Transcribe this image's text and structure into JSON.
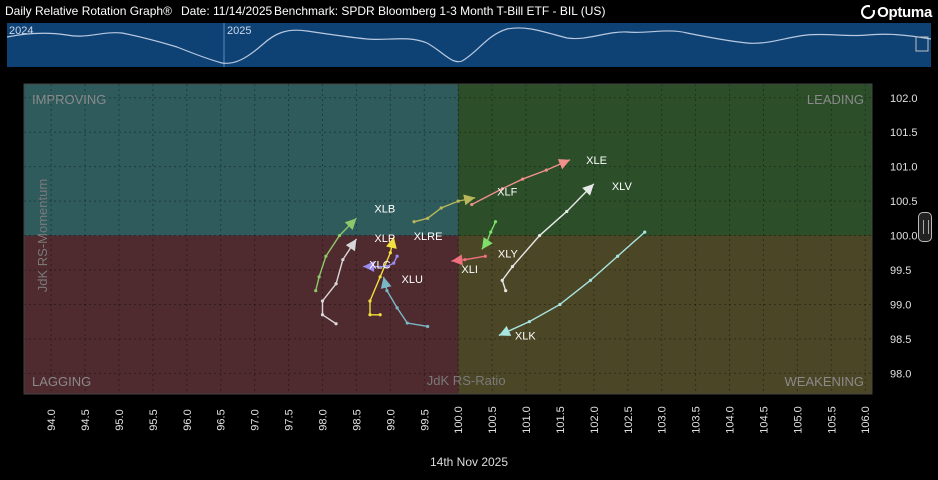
{
  "header": {
    "app_title": "Daily Relative Rotation Graph®",
    "date": "Date: 11/14/2025",
    "benchmark": "Benchmark: SPDR Bloomberg 1-3 Month T-Bill ETF - BIL (US)",
    "logo_text": "Optuma"
  },
  "timeline": {
    "year_labels": [
      "2024",
      "2025"
    ]
  },
  "footer": {
    "date_label": "14th Nov 2025"
  },
  "chart_data": {
    "type": "scatter",
    "title": "",
    "xlabel": "JdK RS-Ratio",
    "ylabel": "JdK RS-Momentum",
    "xlim": [
      93.6,
      106.1
    ],
    "ylim": [
      97.7,
      102.2
    ],
    "x_ticks": [
      "94.0",
      "94.5",
      "95.0",
      "95.5",
      "96.0",
      "96.5",
      "97.0",
      "97.5",
      "98.0",
      "98.5",
      "99.0",
      "99.5",
      "100.0",
      "100.5",
      "101.0",
      "101.5",
      "102.0",
      "102.5",
      "103.0",
      "103.5",
      "104.0",
      "104.5",
      "105.0",
      "105.5",
      "106.0"
    ],
    "y_ticks": [
      "98.0",
      "98.5",
      "99.0",
      "99.5",
      "100.0",
      "100.5",
      "101.0",
      "101.5",
      "102.0"
    ],
    "center": [
      100.0,
      100.0
    ],
    "grid": true,
    "quadrants": [
      {
        "name": "IMPROVING",
        "color": "#2f5b5d"
      },
      {
        "name": "LEADING",
        "color": "#2c4f2a"
      },
      {
        "name": "LAGGING",
        "color": "#4f2a2e"
      },
      {
        "name": "WEAKENING",
        "color": "#4b4626"
      }
    ],
    "series": [
      {
        "name": "XLE",
        "color": "#f08f8c",
        "points": [
          [
            100.2,
            100.45
          ],
          [
            100.65,
            100.68
          ],
          [
            100.95,
            100.82
          ],
          [
            101.3,
            100.95
          ],
          [
            101.65,
            101.1
          ]
        ]
      },
      {
        "name": "XLF",
        "color": "#b8b85a",
        "points": [
          [
            99.35,
            100.2
          ],
          [
            99.55,
            100.25
          ],
          [
            99.75,
            100.4
          ],
          [
            100.0,
            100.5
          ],
          [
            100.25,
            100.55
          ]
        ]
      },
      {
        "name": "XLV",
        "color": "#e8e8e8",
        "points": [
          [
            100.7,
            99.2
          ],
          [
            100.65,
            99.35
          ],
          [
            100.8,
            99.55
          ],
          [
            101.2,
            100.0
          ],
          [
            101.6,
            100.35
          ],
          [
            102.0,
            100.75
          ]
        ]
      },
      {
        "name": "XLK",
        "color": "#a8e4e0",
        "points": [
          [
            102.75,
            100.05
          ],
          [
            102.35,
            99.7
          ],
          [
            101.95,
            99.35
          ],
          [
            101.5,
            99.0
          ],
          [
            101.05,
            98.75
          ],
          [
            100.6,
            98.55
          ]
        ]
      },
      {
        "name": "XLY",
        "color": "#7ee06a",
        "points": [
          [
            100.55,
            100.2
          ],
          [
            100.48,
            100.05
          ],
          [
            100.42,
            99.9
          ],
          [
            100.35,
            99.8
          ]
        ]
      },
      {
        "name": "XLI",
        "color": "#f07080",
        "points": [
          [
            100.4,
            99.7
          ],
          [
            100.1,
            99.65
          ],
          [
            99.9,
            99.63
          ]
        ]
      },
      {
        "name": "XLB",
        "color": "#8fc86a",
        "points": [
          [
            97.9,
            99.2
          ],
          [
            97.95,
            99.4
          ],
          [
            98.05,
            99.7
          ],
          [
            98.25,
            100.0
          ],
          [
            98.5,
            100.25
          ]
        ]
      },
      {
        "name": "XLP",
        "color": "#d8d8d8",
        "points": [
          [
            98.2,
            98.72
          ],
          [
            98.0,
            98.85
          ],
          [
            98.0,
            99.05
          ],
          [
            98.2,
            99.3
          ],
          [
            98.3,
            99.65
          ],
          [
            98.5,
            99.95
          ]
        ]
      },
      {
        "name": "XLRE",
        "color": "#f0e040",
        "points": [
          [
            98.85,
            98.85
          ],
          [
            98.7,
            98.85
          ],
          [
            98.7,
            99.05
          ],
          [
            98.85,
            99.4
          ],
          [
            99.0,
            99.75
          ],
          [
            99.05,
            99.98
          ]
        ]
      },
      {
        "name": "XLC",
        "color": "#9a8cf0",
        "points": [
          [
            99.1,
            99.7
          ],
          [
            99.05,
            99.6
          ],
          [
            98.95,
            99.55
          ],
          [
            98.6,
            99.55
          ]
        ]
      },
      {
        "name": "XLU",
        "color": "#7ab8c8",
        "points": [
          [
            99.55,
            98.68
          ],
          [
            99.25,
            98.73
          ],
          [
            99.1,
            98.95
          ],
          [
            98.95,
            99.2
          ],
          [
            98.9,
            99.4
          ]
        ]
      }
    ],
    "label_offsets": {}
  }
}
